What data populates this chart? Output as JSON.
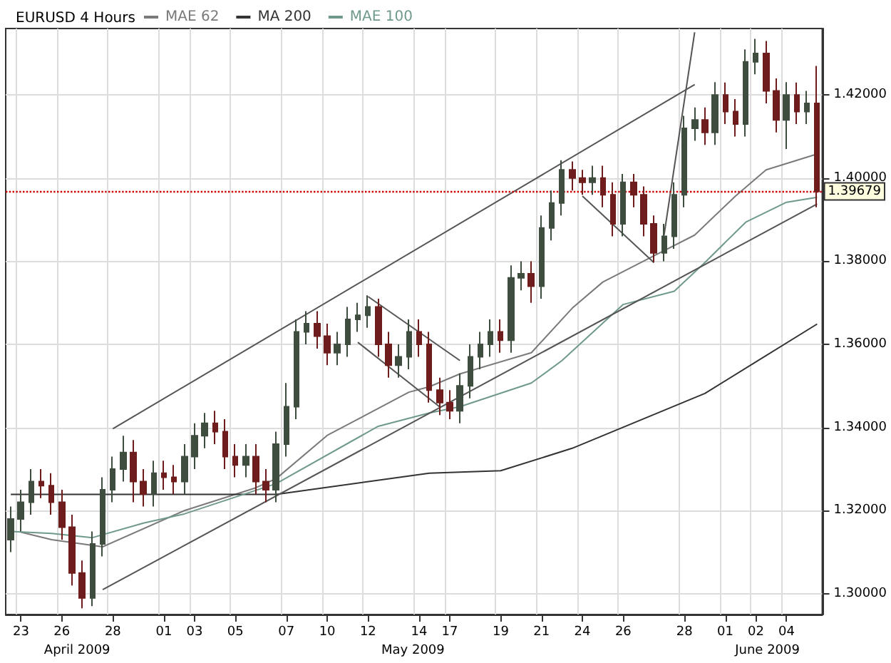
{
  "chart_data": {
    "type": "candlestick",
    "title": "EURUSD 4 Hours",
    "categories": [
      null,
      "23",
      null,
      null,
      null,
      "26",
      null,
      null,
      null,
      null,
      "28",
      null,
      null,
      null,
      null,
      "01",
      null,
      null,
      "03",
      null,
      null,
      null,
      "05",
      null,
      null,
      null,
      null,
      "07",
      null,
      null,
      null,
      "10",
      null,
      null,
      null,
      "12",
      null,
      null,
      null,
      null,
      "14",
      null,
      null,
      "17",
      null,
      null,
      null,
      null,
      "19",
      null,
      null,
      null,
      "21",
      null,
      null,
      null,
      "24",
      null,
      null,
      null,
      "26",
      null,
      null,
      null,
      null,
      null,
      "28",
      null,
      null,
      null,
      "01",
      null,
      null,
      "02",
      null,
      null,
      "04",
      null,
      null,
      null
    ],
    "ohlc": [
      [
        1.313,
        1.321,
        1.31,
        1.318
      ],
      [
        1.318,
        1.325,
        1.315,
        1.322
      ],
      [
        1.322,
        1.33,
        1.319,
        1.327
      ],
      [
        1.327,
        1.33,
        1.323,
        1.326
      ],
      [
        1.326,
        1.329,
        1.319,
        1.322
      ],
      [
        1.322,
        1.325,
        1.313,
        1.316
      ],
      [
        1.316,
        1.319,
        1.302,
        1.305
      ],
      [
        1.305,
        1.308,
        1.2965,
        1.299
      ],
      [
        1.299,
        1.315,
        1.297,
        1.312
      ],
      [
        1.312,
        1.328,
        1.309,
        1.325
      ],
      [
        1.325,
        1.333,
        1.322,
        1.33
      ],
      [
        1.33,
        1.338,
        1.327,
        1.334
      ],
      [
        1.334,
        1.337,
        1.322,
        1.327
      ],
      [
        1.327,
        1.33,
        1.321,
        1.324
      ],
      [
        1.324,
        1.332,
        1.321,
        1.329
      ],
      [
        1.329,
        1.332,
        1.325,
        1.328
      ],
      [
        1.328,
        1.331,
        1.324,
        1.327
      ],
      [
        1.327,
        1.336,
        1.324,
        1.333
      ],
      [
        1.333,
        1.341,
        1.33,
        1.338
      ],
      [
        1.338,
        1.3435,
        1.335,
        1.341
      ],
      [
        1.341,
        1.344,
        1.336,
        1.339
      ],
      [
        1.339,
        1.342,
        1.33,
        1.333
      ],
      [
        1.333,
        1.336,
        1.328,
        1.331
      ],
      [
        1.331,
        1.336,
        1.328,
        1.333
      ],
      [
        1.333,
        1.336,
        1.324,
        1.327
      ],
      [
        1.327,
        1.33,
        1.322,
        1.325
      ],
      [
        1.325,
        1.339,
        1.322,
        1.336
      ],
      [
        1.336,
        1.3507,
        1.333,
        1.345
      ],
      [
        1.345,
        1.366,
        1.342,
        1.363
      ],
      [
        1.363,
        1.368,
        1.36,
        1.365
      ],
      [
        1.365,
        1.368,
        1.359,
        1.362
      ],
      [
        1.362,
        1.365,
        1.355,
        1.358
      ],
      [
        1.358,
        1.363,
        1.355,
        1.36
      ],
      [
        1.36,
        1.369,
        1.357,
        1.366
      ],
      [
        1.366,
        1.37,
        1.363,
        1.367
      ],
      [
        1.367,
        1.3718,
        1.364,
        1.369
      ],
      [
        1.369,
        1.371,
        1.357,
        1.36
      ],
      [
        1.36,
        1.363,
        1.352,
        1.355
      ],
      [
        1.355,
        1.36,
        1.352,
        1.357
      ],
      [
        1.357,
        1.366,
        1.354,
        1.363
      ],
      [
        1.363,
        1.366,
        1.357,
        1.36
      ],
      [
        1.36,
        1.363,
        1.346,
        1.349
      ],
      [
        1.349,
        1.352,
        1.343,
        1.346
      ],
      [
        1.346,
        1.349,
        1.342,
        1.344
      ],
      [
        1.344,
        1.353,
        1.341,
        1.35
      ],
      [
        1.35,
        1.36,
        1.347,
        1.357
      ],
      [
        1.357,
        1.363,
        1.354,
        1.36
      ],
      [
        1.36,
        1.366,
        1.357,
        1.363
      ],
      [
        1.363,
        1.366,
        1.358,
        1.361
      ],
      [
        1.361,
        1.379,
        1.358,
        1.376
      ],
      [
        1.376,
        1.38,
        1.373,
        1.377
      ],
      [
        1.377,
        1.38,
        1.37,
        1.374
      ],
      [
        1.374,
        1.391,
        1.371,
        1.388
      ],
      [
        1.388,
        1.397,
        1.385,
        1.394
      ],
      [
        1.394,
        1.4043,
        1.391,
        1.402
      ],
      [
        1.402,
        1.404,
        1.397,
        1.4
      ],
      [
        1.4,
        1.402,
        1.396,
        1.399
      ],
      [
        1.399,
        1.403,
        1.396,
        1.4
      ],
      [
        1.4,
        1.403,
        1.393,
        1.396
      ],
      [
        1.396,
        1.399,
        1.386,
        1.389
      ],
      [
        1.389,
        1.401,
        1.386,
        1.399
      ],
      [
        1.399,
        1.401,
        1.393,
        1.396
      ],
      [
        1.396,
        1.398,
        1.386,
        1.389
      ],
      [
        1.389,
        1.391,
        1.3797,
        1.382
      ],
      [
        1.382,
        1.389,
        1.38,
        1.386
      ],
      [
        1.386,
        1.399,
        1.383,
        1.396
      ],
      [
        1.396,
        1.415,
        1.393,
        1.412
      ],
      [
        1.412,
        1.417,
        1.409,
        1.414
      ],
      [
        1.414,
        1.417,
        1.408,
        1.411
      ],
      [
        1.411,
        1.4231,
        1.408,
        1.42
      ],
      [
        1.42,
        1.423,
        1.413,
        1.416
      ],
      [
        1.416,
        1.419,
        1.41,
        1.413
      ],
      [
        1.413,
        1.431,
        1.41,
        1.428
      ],
      [
        1.428,
        1.4335,
        1.425,
        1.43
      ],
      [
        1.43,
        1.433,
        1.418,
        1.421
      ],
      [
        1.421,
        1.424,
        1.411,
        1.414
      ],
      [
        1.414,
        1.4231,
        1.407,
        1.42
      ],
      [
        1.42,
        1.423,
        1.413,
        1.416
      ],
      [
        1.416,
        1.421,
        1.413,
        1.418
      ],
      [
        1.418,
        1.427,
        1.393,
        1.3968
      ]
    ],
    "colors": [
      "#3f4d3f",
      "#3f4d3f",
      "#3f4d3f",
      "#6e1c1c",
      "#6e1c1c",
      "#6e1c1c",
      "#6e1c1c",
      "#6e1c1c",
      "#3f4d3f",
      "#3f4d3f",
      "#3f4d3f",
      "#3f4d3f",
      "#6e1c1c",
      "#6e1c1c",
      "#3f4d3f",
      "#6e1c1c",
      "#6e1c1c",
      "#3f4d3f",
      "#3f4d3f",
      "#3f4d3f",
      "#6e1c1c",
      "#6e1c1c",
      "#6e1c1c",
      "#3f4d3f",
      "#6e1c1c",
      "#6e1c1c",
      "#3f4d3f",
      "#3f4d3f",
      "#3f4d3f",
      "#3f4d3f",
      "#6e1c1c",
      "#6e1c1c",
      "#3f4d3f",
      "#3f4d3f",
      "#3f4d3f",
      "#3f4d3f",
      "#6e1c1c",
      "#6e1c1c",
      "#3f4d3f",
      "#3f4d3f",
      "#6e1c1c",
      "#6e1c1c",
      "#6e1c1c",
      "#6e1c1c",
      "#3f4d3f",
      "#3f4d3f",
      "#3f4d3f",
      "#3f4d3f",
      "#6e1c1c",
      "#3f4d3f",
      "#3f4d3f",
      "#6e1c1c",
      "#3f4d3f",
      "#3f4d3f",
      "#3f4d3f",
      "#6e1c1c",
      "#6e1c1c",
      "#3f4d3f",
      "#6e1c1c",
      "#6e1c1c",
      "#3f4d3f",
      "#6e1c1c",
      "#6e1c1c",
      "#6e1c1c",
      "#3f4d3f",
      "#3f4d3f",
      "#3f4d3f",
      "#3f4d3f",
      "#6e1c1c",
      "#3f4d3f",
      "#6e1c1c",
      "#6e1c1c",
      "#3f4d3f",
      "#3f4d3f",
      "#6e1c1c",
      "#6e1c1c",
      "#3f4d3f",
      "#6e1c1c",
      "#3f4d3f",
      "#6e1c1c"
    ],
    "series": [
      {
        "name": "MAE 62",
        "type": "line",
        "color": "#7a7a7a",
        "values": [
          null,
          1.3148,
          null,
          null,
          1.313,
          null,
          null,
          null,
          null,
          1.3113,
          null,
          null,
          null,
          null,
          null,
          null,
          null,
          1.32,
          null,
          null,
          null,
          null,
          null,
          null,
          1.3255,
          null,
          1.3277,
          null,
          null,
          null,
          null,
          1.3381,
          null,
          null,
          null,
          null,
          null,
          null,
          null,
          1.3485,
          null,
          1.3498,
          null,
          null,
          1.3529,
          null,
          null,
          null,
          null,
          null,
          null,
          1.358,
          null,
          null,
          null,
          1.3687,
          null,
          null,
          1.375,
          null,
          null,
          null,
          null,
          1.3813,
          null,
          null,
          null,
          1.3863,
          null,
          null,
          null,
          1.3957,
          null,
          null,
          1.402,
          null,
          null,
          null,
          null,
          1.4058
        ]
      },
      {
        "name": "MA 200",
        "type": "line",
        "color": "#333333",
        "values": [
          1.3239,
          null,
          null,
          null,
          null,
          null,
          null,
          null,
          null,
          null,
          null,
          null,
          null,
          null,
          null,
          null,
          null,
          null,
          null,
          null,
          null,
          null,
          null,
          null,
          null,
          null,
          1.3239,
          null,
          null,
          null,
          null,
          null,
          null,
          null,
          null,
          null,
          null,
          null,
          null,
          null,
          null,
          1.329,
          null,
          null,
          null,
          null,
          null,
          null,
          1.3296,
          null,
          null,
          null,
          null,
          null,
          null,
          1.335,
          null,
          null,
          null,
          null,
          null,
          null,
          null,
          null,
          null,
          null,
          null,
          null,
          1.3482,
          null,
          null,
          null,
          null,
          null,
          null,
          null,
          null,
          null,
          null,
          1.3649
        ]
      },
      {
        "name": "MAE 100",
        "type": "line",
        "color": "#6f9a8a",
        "values": [
          1.315,
          null,
          null,
          null,
          1.3145,
          null,
          null,
          null,
          1.3135,
          null,
          null,
          null,
          null,
          1.317,
          null,
          null,
          null,
          1.3192,
          null,
          null,
          null,
          null,
          null,
          null,
          null,
          null,
          1.3265,
          null,
          null,
          null,
          null,
          null,
          null,
          null,
          null,
          null,
          1.3403,
          null,
          null,
          null,
          null,
          1.3435,
          null,
          null,
          1.345,
          null,
          null,
          null,
          null,
          null,
          null,
          1.3507,
          null,
          null,
          1.3561,
          null,
          null,
          null,
          null,
          null,
          1.3696,
          null,
          null,
          null,
          null,
          1.3728,
          null,
          null,
          1.3797,
          null,
          null,
          null,
          1.3894,
          null,
          null,
          null,
          1.3942,
          null,
          null,
          1.3954
        ]
      },
      {
        "type": "line",
        "color": "#555555",
        "values": [
          null,
          null,
          null,
          null,
          null,
          null,
          null,
          null,
          null,
          null,
          1.3397,
          null,
          null,
          null,
          null,
          null,
          null,
          null,
          null,
          null,
          null,
          null,
          null,
          null,
          null,
          null,
          null,
          null,
          null,
          null,
          null,
          null,
          null,
          null,
          null,
          null,
          null,
          null,
          null,
          null,
          null,
          null,
          null,
          null,
          null,
          null,
          null,
          null,
          null,
          null,
          null,
          null,
          null,
          null,
          null,
          null,
          null,
          null,
          null,
          null,
          null,
          null,
          null,
          null,
          null,
          null,
          null,
          1.4225,
          null,
          null,
          null,
          null,
          null,
          null,
          null,
          null,
          null,
          null,
          null,
          null
        ]
      },
      {
        "type": "line",
        "color": "#555555",
        "values": [
          null,
          null,
          null,
          null,
          null,
          null,
          null,
          null,
          null,
          1.301,
          null,
          null,
          null,
          null,
          null,
          null,
          null,
          null,
          null,
          null,
          null,
          null,
          null,
          null,
          null,
          null,
          null,
          null,
          null,
          null,
          null,
          null,
          null,
          null,
          null,
          null,
          null,
          null,
          null,
          null,
          null,
          null,
          null,
          null,
          null,
          null,
          null,
          null,
          null,
          null,
          null,
          null,
          null,
          null,
          null,
          null,
          null,
          null,
          null,
          null,
          null,
          null,
          null,
          null,
          null,
          null,
          null,
          null,
          null,
          null,
          null,
          null,
          null,
          null,
          null,
          null,
          null,
          null,
          null,
          1.3938
        ]
      },
      {
        "type": "line",
        "color": "#555555",
        "values": [
          null,
          null,
          null,
          null,
          null,
          null,
          null,
          null,
          null,
          null,
          null,
          null,
          null,
          null,
          null,
          null,
          null,
          null,
          null,
          null,
          null,
          null,
          null,
          null,
          null,
          null,
          null,
          null,
          null,
          null,
          null,
          null,
          null,
          null,
          null,
          null,
          null,
          null,
          null,
          null,
          null,
          null,
          null,
          null,
          null,
          null,
          null,
          null,
          null,
          null,
          null,
          null,
          null,
          null,
          null,
          null,
          null,
          null,
          null,
          null,
          null,
          null,
          null,
          null,
          1.3863,
          null,
          null,
          1.4351,
          null,
          null,
          null,
          null,
          null,
          null,
          null,
          null,
          null,
          null,
          null,
          null
        ]
      },
      {
        "type": "line",
        "color": "#555555",
        "values": [
          null,
          null,
          null,
          null,
          null,
          null,
          null,
          null,
          null,
          null,
          null,
          null,
          null,
          null,
          null,
          null,
          null,
          null,
          null,
          null,
          null,
          null,
          null,
          null,
          null,
          null,
          null,
          null,
          null,
          null,
          null,
          null,
          null,
          null,
          null,
          1.3715,
          null,
          null,
          null,
          null,
          null,
          null,
          null,
          null,
          1.3561,
          null,
          null,
          null,
          null,
          null,
          null,
          null,
          null,
          null,
          null,
          null,
          null,
          null,
          null,
          null,
          null,
          null,
          null,
          null,
          null,
          null,
          null,
          null,
          null,
          null,
          null,
          null,
          null,
          null,
          null,
          null,
          null,
          null,
          null,
          null
        ]
      },
      {
        "type": "line",
        "color": "#555555",
        "values": [
          null,
          null,
          null,
          null,
          null,
          null,
          null,
          null,
          null,
          null,
          null,
          null,
          null,
          null,
          null,
          null,
          null,
          null,
          null,
          null,
          null,
          null,
          null,
          null,
          null,
          null,
          null,
          null,
          null,
          null,
          null,
          null,
          null,
          null,
          1.3605,
          null,
          null,
          null,
          null,
          null,
          null,
          null,
          1.345,
          null,
          null,
          null,
          null,
          null,
          null,
          null,
          null,
          null,
          null,
          null,
          null,
          null,
          null,
          null,
          null,
          null,
          null,
          null,
          null,
          null,
          null,
          null,
          null,
          null,
          null,
          null,
          null,
          null,
          null,
          null,
          null,
          null,
          null,
          null,
          null,
          null
        ]
      },
      {
        "type": "line",
        "color": "#555555",
        "values": [
          null,
          null,
          null,
          null,
          null,
          null,
          null,
          null,
          null,
          null,
          null,
          null,
          null,
          null,
          null,
          null,
          null,
          null,
          null,
          null,
          null,
          null,
          null,
          null,
          null,
          null,
          null,
          null,
          null,
          null,
          null,
          null,
          null,
          null,
          null,
          null,
          null,
          null,
          null,
          null,
          null,
          null,
          null,
          null,
          null,
          null,
          null,
          null,
          null,
          null,
          null,
          null,
          null,
          null,
          null,
          null,
          1.3957,
          null,
          null,
          null,
          null,
          null,
          null,
          1.3797,
          null,
          null,
          null,
          null,
          null,
          null,
          null,
          null,
          null,
          null,
          null,
          null,
          null,
          null,
          null,
          null
        ]
      }
    ],
    "ylim": [
      1.295,
      1.436
    ],
    "yticks": [
      {
        "value": 1.3,
        "label": "1.30000"
      },
      {
        "value": 1.32,
        "label": "1.32000"
      },
      {
        "value": 1.34,
        "label": "1.34000"
      },
      {
        "value": 1.36,
        "label": "1.36000"
      },
      {
        "value": 1.38,
        "label": "1.38000"
      },
      {
        "value": 1.4,
        "label": "1.40000"
      },
      {
        "value": 1.42,
        "label": "1.42000"
      }
    ],
    "ref_lines": [
      {
        "axis": "y",
        "value": 1.39679,
        "label": "1.39679",
        "color": "#cc0000",
        "line_style": "dotted"
      }
    ],
    "annotations": [
      "April 2009",
      "May 2009",
      "June 2009"
    ],
    "grid": true,
    "legend": "top left",
    "marker": "none",
    "line_style": "solid"
  }
}
